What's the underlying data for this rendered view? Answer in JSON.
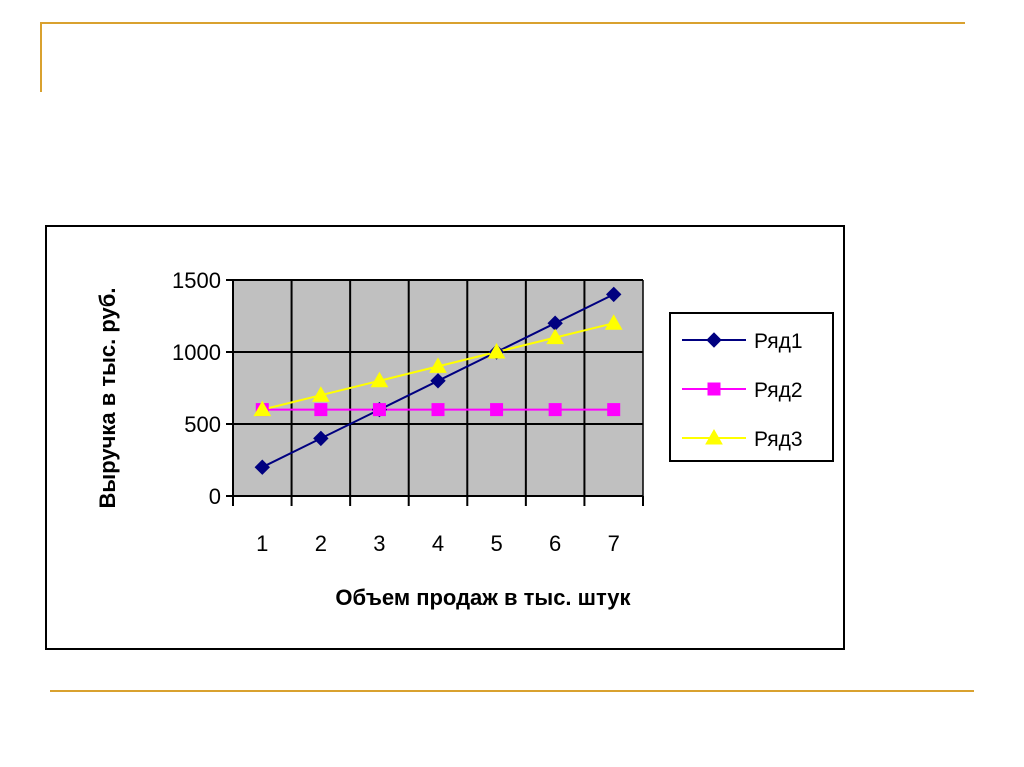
{
  "chart_data": {
    "type": "line",
    "x": [
      1,
      2,
      3,
      4,
      5,
      6,
      7
    ],
    "categories": [
      "1",
      "2",
      "3",
      "4",
      "5",
      "6",
      "7"
    ],
    "ylabel": "Выручка в тыс. руб.",
    "xlabel": "Объем продаж в тыс. штук",
    "ylim": [
      0,
      1500
    ],
    "yticks": [
      "0",
      "500",
      "1000",
      "1500"
    ],
    "grid": true,
    "legend_position": "right",
    "plot_background": "#c0c0c0",
    "series": [
      {
        "name": "Ряд1",
        "values": [
          200,
          400,
          600,
          800,
          1000,
          1200,
          1400
        ],
        "color": "#000080",
        "marker": "diamond"
      },
      {
        "name": "Ряд2",
        "values": [
          600,
          600,
          600,
          600,
          600,
          600,
          600
        ],
        "color": "#ff00ff",
        "marker": "square"
      },
      {
        "name": "Ряд3",
        "values": [
          600,
          700,
          800,
          900,
          1000,
          1100,
          1200
        ],
        "color": "#ffff00",
        "marker": "triangle"
      }
    ]
  },
  "colors": {
    "accent_rule": "#d9a12f"
  }
}
